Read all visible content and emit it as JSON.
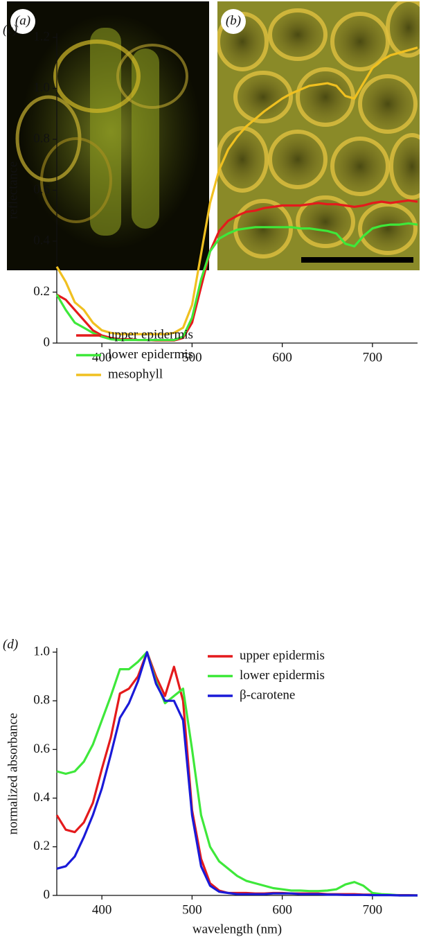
{
  "panels": [
    {
      "label": "(a)"
    },
    {
      "label": "(b)"
    }
  ],
  "chart_data": [
    {
      "type": "line",
      "panel_label": "(c)",
      "ylabel": "reflectance",
      "xlim": [
        350,
        750
      ],
      "xticks": [
        400,
        500,
        600,
        700
      ],
      "ylim": [
        0,
        1.2
      ],
      "yticks": [
        0,
        0.2,
        0.4,
        0.6,
        0.8,
        {
          "value": 1,
          "label": "1.0"
        },
        1.2
      ],
      "legend": "upper left",
      "x": [
        350,
        360,
        370,
        380,
        390,
        400,
        410,
        420,
        430,
        440,
        450,
        460,
        470,
        480,
        490,
        500,
        510,
        520,
        530,
        540,
        550,
        560,
        570,
        580,
        590,
        600,
        610,
        620,
        630,
        640,
        650,
        660,
        670,
        680,
        690,
        700,
        710,
        720,
        730,
        740,
        750
      ],
      "series": [
        {
          "name": "upper epidermis",
          "color": "#e41a1c",
          "values": [
            0.19,
            0.17,
            0.13,
            0.09,
            0.05,
            0.03,
            0.02,
            0.015,
            0.015,
            0.012,
            0.012,
            0.01,
            0.01,
            0.01,
            0.02,
            0.08,
            0.22,
            0.36,
            0.44,
            0.48,
            0.5,
            0.515,
            0.52,
            0.53,
            0.535,
            0.54,
            0.54,
            0.54,
            0.545,
            0.55,
            0.545,
            0.545,
            0.54,
            0.535,
            0.54,
            0.55,
            0.555,
            0.55,
            0.555,
            0.56,
            0.555
          ]
        },
        {
          "name": "lower epidermis",
          "color": "#3ee83a",
          "values": [
            0.19,
            0.13,
            0.08,
            0.06,
            0.04,
            0.025,
            0.015,
            0.012,
            0.012,
            0.012,
            0.012,
            0.012,
            0.012,
            0.012,
            0.025,
            0.1,
            0.25,
            0.36,
            0.41,
            0.43,
            0.445,
            0.45,
            0.455,
            0.455,
            0.455,
            0.455,
            0.455,
            0.45,
            0.45,
            0.445,
            0.44,
            0.43,
            0.39,
            0.38,
            0.42,
            0.45,
            0.46,
            0.465,
            0.465,
            0.47,
            0.465
          ]
        },
        {
          "name": "mesophyll",
          "color": "#f0c020",
          "values": [
            0.3,
            0.24,
            0.16,
            0.13,
            0.08,
            0.05,
            0.04,
            0.035,
            0.035,
            0.035,
            0.035,
            0.035,
            0.035,
            0.04,
            0.06,
            0.15,
            0.35,
            0.55,
            0.68,
            0.76,
            0.81,
            0.85,
            0.88,
            0.91,
            0.935,
            0.96,
            0.98,
            0.995,
            1.01,
            1.015,
            1.02,
            1.01,
            0.97,
            0.96,
            1.02,
            1.08,
            1.11,
            1.13,
            1.14,
            1.15,
            1.16
          ]
        }
      ]
    },
    {
      "type": "line",
      "panel_label": "(d)",
      "ylabel": "normalized absorbance",
      "xlabel": "wavelength (nm)",
      "xlim": [
        350,
        750
      ],
      "xticks": [
        400,
        500,
        600,
        700
      ],
      "ylim": [
        0,
        1
      ],
      "yticks": [
        0,
        0.2,
        0.4,
        0.6,
        0.8,
        {
          "value": 1,
          "label": "1.0"
        }
      ],
      "legend": "upper right",
      "x": [
        350,
        360,
        370,
        380,
        390,
        400,
        410,
        420,
        430,
        440,
        450,
        460,
        470,
        480,
        490,
        500,
        510,
        520,
        530,
        540,
        550,
        560,
        570,
        580,
        590,
        600,
        610,
        620,
        630,
        640,
        650,
        660,
        670,
        680,
        690,
        700,
        710,
        720,
        730,
        740,
        750
      ],
      "series": [
        {
          "name": "upper epidermis",
          "color": "#e41a1c",
          "values": [
            0.33,
            0.27,
            0.26,
            0.3,
            0.38,
            0.52,
            0.65,
            0.83,
            0.85,
            0.9,
            1,
            0.9,
            0.82,
            0.94,
            0.8,
            0.35,
            0.15,
            0.05,
            0.02,
            0.01,
            0.01,
            0.01,
            0.008,
            0.008,
            0.01,
            0.01,
            0.008,
            0.008,
            0.008,
            0.008,
            0.005,
            0.005,
            0.005,
            0.005,
            0.003,
            0.003,
            0.002,
            0.002,
            0.001,
            0.001,
            0
          ]
        },
        {
          "name": "lower epidermis",
          "color": "#3ee83a",
          "values": [
            0.51,
            0.5,
            0.51,
            0.55,
            0.62,
            0.72,
            0.82,
            0.93,
            0.93,
            0.96,
            1,
            0.88,
            0.79,
            0.82,
            0.85,
            0.6,
            0.33,
            0.2,
            0.14,
            0.11,
            0.08,
            0.06,
            0.05,
            0.04,
            0.03,
            0.025,
            0.02,
            0.02,
            0.018,
            0.018,
            0.02,
            0.025,
            0.045,
            0.055,
            0.04,
            0.01,
            0.005,
            0.003,
            0,
            0,
            0
          ]
        },
        {
          "name": "β-carotene",
          "color": "#1a1ad8",
          "values": [
            0.11,
            0.12,
            0.16,
            0.24,
            0.33,
            0.44,
            0.58,
            0.73,
            0.79,
            0.88,
            1,
            0.87,
            0.8,
            0.8,
            0.72,
            0.33,
            0.12,
            0.04,
            0.015,
            0.01,
            0.005,
            0.005,
            0.005,
            0.005,
            0.008,
            0.008,
            0.008,
            0.005,
            0.005,
            0.005,
            0.003,
            0.003,
            0.002,
            0.002,
            0.002,
            0.001,
            0.001,
            0.001,
            0,
            0,
            0
          ]
        }
      ]
    }
  ]
}
